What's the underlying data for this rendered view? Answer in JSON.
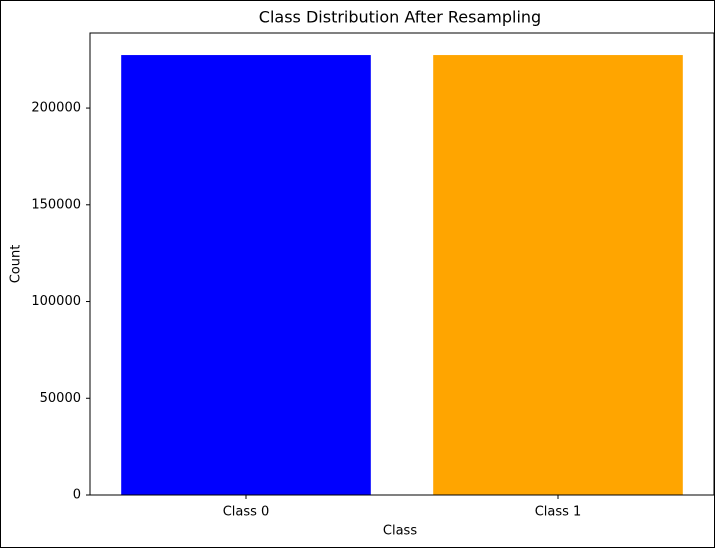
{
  "chart_data": {
    "type": "bar",
    "title": "Class Distribution After Resampling",
    "x_label": "Class",
    "y_label": "Count",
    "categories": [
      "Class 0",
      "Class 1"
    ],
    "values": [
      227400,
      227400
    ],
    "colors": [
      "blue",
      "orange"
    ],
    "ylim": [
      0,
      238800
    ],
    "yticks": [
      0,
      50000,
      100000,
      150000,
      200000
    ],
    "grid": false
  }
}
